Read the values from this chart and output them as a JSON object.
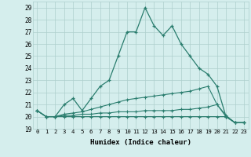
{
  "x": [
    0,
    1,
    2,
    3,
    4,
    5,
    6,
    7,
    8,
    9,
    10,
    11,
    12,
    13,
    14,
    15,
    16,
    17,
    18,
    19,
    20,
    21,
    22,
    23
  ],
  "line1": [
    20.5,
    20.0,
    20.0,
    21.0,
    21.5,
    20.5,
    21.5,
    22.5,
    23.0,
    25.0,
    27.0,
    27.0,
    29.0,
    27.5,
    26.7,
    27.5,
    26.0,
    25.0,
    24.0,
    23.5,
    22.5,
    20.0,
    19.5,
    19.5
  ],
  "line2": [
    20.5,
    20.0,
    20.0,
    20.2,
    20.3,
    20.4,
    20.6,
    20.8,
    21.0,
    21.2,
    21.4,
    21.5,
    21.6,
    21.7,
    21.8,
    21.9,
    22.0,
    22.1,
    22.3,
    22.5,
    21.0,
    20.0,
    19.5,
    19.5
  ],
  "line3": [
    20.5,
    20.0,
    20.0,
    20.1,
    20.1,
    20.2,
    20.2,
    20.3,
    20.3,
    20.4,
    20.4,
    20.4,
    20.5,
    20.5,
    20.5,
    20.5,
    20.6,
    20.6,
    20.7,
    20.8,
    21.0,
    20.1,
    19.5,
    19.5
  ],
  "line4": [
    20.5,
    20.0,
    20.0,
    20.0,
    20.0,
    20.0,
    20.0,
    20.0,
    20.0,
    20.0,
    20.0,
    20.0,
    20.0,
    20.0,
    20.0,
    20.0,
    20.0,
    20.0,
    20.0,
    20.0,
    20.0,
    20.0,
    19.5,
    19.5
  ],
  "color": "#2a7d6e",
  "bg_color": "#d5eeed",
  "grid_color": "#aecfcc",
  "xlabel": "Humidex (Indice chaleur)",
  "ylabel_values": [
    19,
    20,
    21,
    22,
    23,
    24,
    25,
    26,
    27,
    28,
    29
  ],
  "ylim": [
    19.0,
    29.5
  ],
  "xlim": [
    -0.5,
    23.5
  ]
}
